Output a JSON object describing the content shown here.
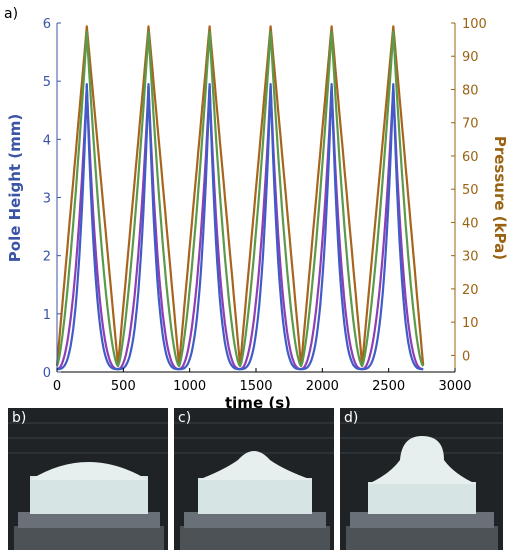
{
  "figure": {
    "panel_a_label": "a)",
    "photos": [
      {
        "label": "b)",
        "pole": "low"
      },
      {
        "label": "c)",
        "pole": "medium"
      },
      {
        "label": "d)",
        "pole": "high"
      }
    ]
  },
  "chart_data": {
    "type": "line",
    "xlabel": "time (s)",
    "ylabel_left": "Pole Height (mm)",
    "ylabel_right": "Pressure (kPa)",
    "xlim": [
      0,
      3000
    ],
    "ylim_left": [
      0,
      6
    ],
    "ylim_right": [
      -5,
      100
    ],
    "x_ticks": [
      "0",
      "500",
      "1000",
      "1500",
      "2000",
      "2500",
      "3000"
    ],
    "y_left_ticks": [
      "0",
      "1",
      "2",
      "3",
      "4",
      "5",
      "6"
    ],
    "y_right_ticks": [
      "0",
      "10",
      "20",
      "30",
      "40",
      "50",
      "60",
      "70",
      "80",
      "90",
      "100"
    ],
    "left_axis_color": "#3b54a6",
    "right_axis_color": "#9a6313",
    "cycles": {
      "valleys_s": [
        0,
        460,
        920,
        1380,
        1840,
        2300,
        2760
      ],
      "peaks_s": [
        225,
        690,
        1150,
        1610,
        2070,
        2535
      ]
    },
    "series": [
      {
        "axis": "right",
        "color": "#a8641c",
        "peak": 99,
        "min": -3
      },
      {
        "axis": "left",
        "color": "#5a9a4a",
        "peak": 5.85,
        "min": 0.1
      },
      {
        "axis": "left",
        "color": "#8e3fb4",
        "peak": 4.92,
        "min": 0.05
      },
      {
        "axis": "left",
        "color": "#3f5cc7",
        "peak": 4.95,
        "min": 0.05
      }
    ]
  }
}
